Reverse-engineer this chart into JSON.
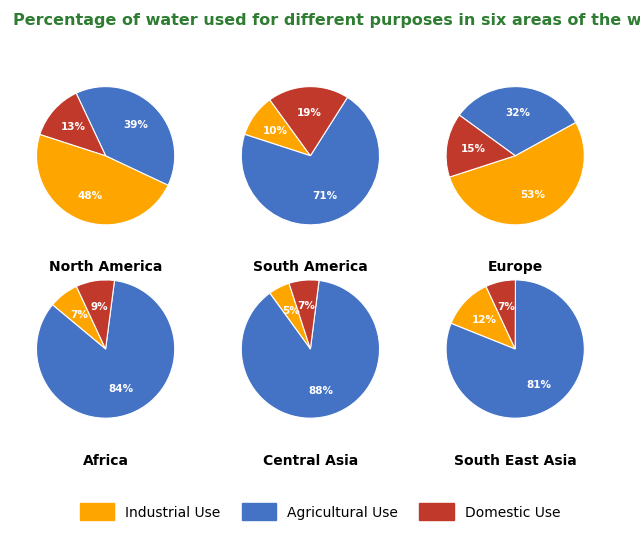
{
  "title": "Percentage of water used for different purposes in six areas of the world.",
  "title_color": "#2e7d32",
  "background_color": "#ffffff",
  "regions": [
    {
      "name": "North America",
      "values": [
        48,
        39,
        13
      ],
      "startangle": 162,
      "labels": [
        "48%",
        "39%",
        "13%"
      ]
    },
    {
      "name": "South America",
      "values": [
        10,
        71,
        19
      ],
      "startangle": 126,
      "labels": [
        "10%",
        "71%",
        "19%"
      ]
    },
    {
      "name": "Europe",
      "values": [
        53,
        32,
        15
      ],
      "startangle": 198,
      "labels": [
        "53%",
        "32%",
        "15%"
      ]
    },
    {
      "name": "Africa",
      "values": [
        7,
        84,
        9
      ],
      "startangle": 115,
      "labels": [
        "7%",
        "84%",
        "9%"
      ]
    },
    {
      "name": "Central Asia",
      "values": [
        5,
        88,
        7
      ],
      "startangle": 108,
      "labels": [
        "5%",
        "88%",
        "7%"
      ]
    },
    {
      "name": "South East Asia",
      "values": [
        12,
        81,
        7
      ],
      "startangle": 115,
      "labels": [
        "12%",
        "81%",
        "7%"
      ]
    }
  ],
  "colors": [
    "#FFA500",
    "#4472C4",
    "#C0392B"
  ],
  "legend_labels": [
    "Industrial Use",
    "Agricultural Use",
    "Domestic Use"
  ],
  "label_color": "#ffffff",
  "label_fontsize": 7.5,
  "region_name_fontsize": 10,
  "title_fontsize": 11.5
}
